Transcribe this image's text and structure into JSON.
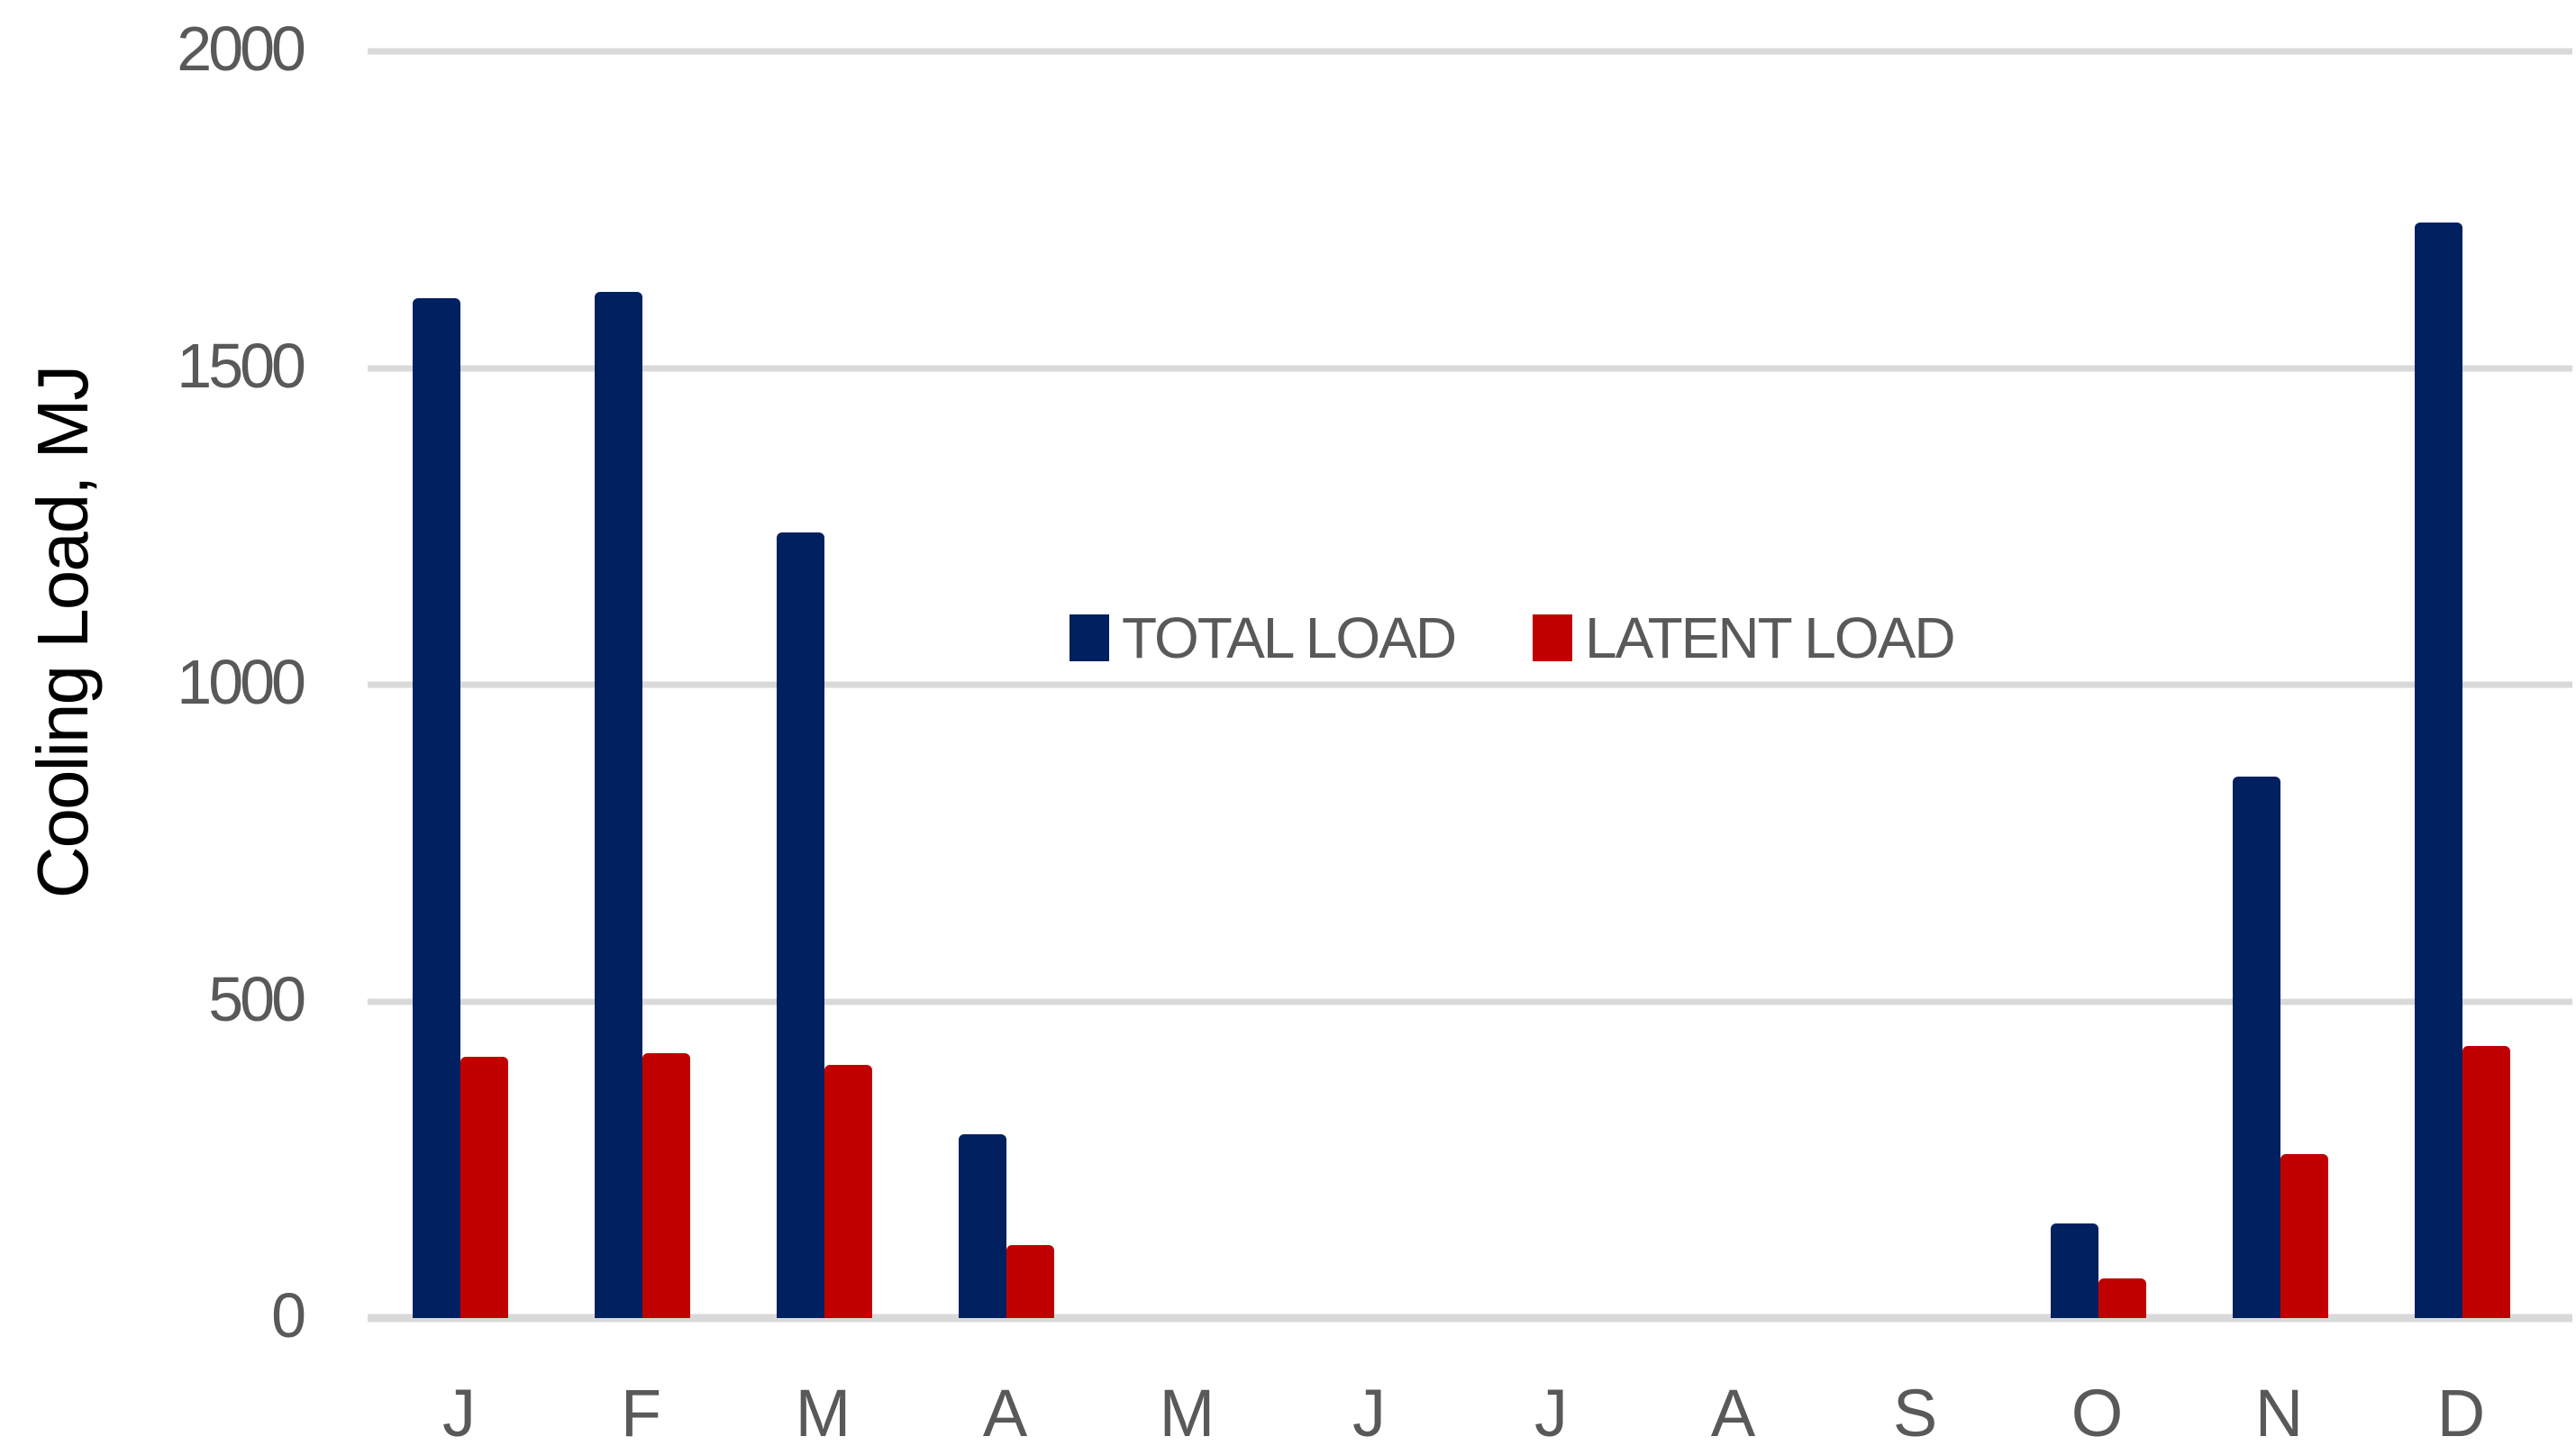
{
  "chart_data": {
    "type": "bar",
    "title": "",
    "categories": [
      "J",
      "F",
      "M",
      "A",
      "M",
      "J",
      "J",
      "A",
      "S",
      "O",
      "N",
      "D"
    ],
    "series": [
      {
        "name": "TOTAL LOAD",
        "color": "#002060",
        "values": [
          1610,
          1620,
          1240,
          290,
          0,
          0,
          0,
          0,
          0,
          150,
          855,
          1730
        ]
      },
      {
        "name": "LATENT LOAD",
        "color": "#C00000",
        "values": [
          413,
          418,
          400,
          115,
          0,
          0,
          0,
          0,
          0,
          63,
          259,
          430
        ]
      }
    ],
    "xlabel": "",
    "ylabel": "Cooling Load, MJ",
    "ylim": [
      0,
      2000
    ],
    "yticks": [
      0,
      500,
      1000,
      1500,
      2000
    ],
    "grid": true,
    "legend_position": "inside-center",
    "colors": {
      "gridline": "#D9D9D9",
      "baseline": "#D9D9D9",
      "tick_text": "#595959",
      "axis_title_text": "#000000",
      "background": "#FFFFFF"
    }
  }
}
